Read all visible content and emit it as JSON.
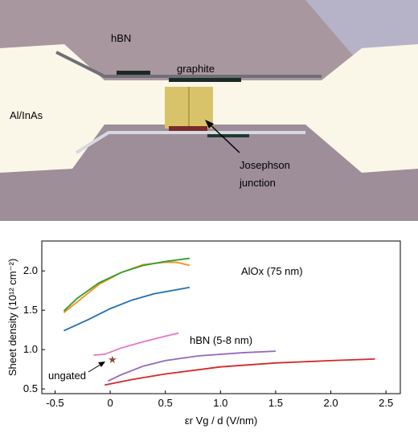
{
  "image": {
    "labels": [
      "hBN",
      "graphite",
      "Al/InAs",
      "Josephson",
      "junction"
    ]
  },
  "chart_data": {
    "type": "line",
    "ylabel": "Sheet density (10¹² cm⁻²)",
    "xlabel": "εr Vg / d (V/nm)",
    "annotations": [
      "AlOx (75 nm)",
      "hBN (5-8 nm)",
      "ungated"
    ],
    "xlim": [
      -0.62,
      2.63
    ],
    "ylim": [
      0.44,
      2.38
    ],
    "xticks": [
      -0.5,
      0,
      0.5,
      {
        "value": 1,
        "label": "1.0"
      },
      1.5,
      {
        "value": 2,
        "label": "2.0"
      },
      2.5
    ],
    "yticks": [
      0.5,
      {
        "value": 1,
        "label": "1.0"
      },
      1.5,
      {
        "value": 2,
        "label": "2.0"
      }
    ],
    "series": [
      {
        "color": "#ff8c1a",
        "x": [
          -0.42,
          -0.1,
          0.1,
          0.3,
          0.5,
          0.6,
          0.72
        ],
        "values": [
          1.47,
          1.83,
          1.98,
          2.08,
          2.11,
          2.11,
          2.07
        ]
      },
      {
        "color": "#2ca02c",
        "x": [
          -0.42,
          -0.3,
          -0.1,
          0.1,
          0.3,
          0.5,
          0.72
        ],
        "values": [
          1.49,
          1.65,
          1.85,
          1.98,
          2.07,
          2.12,
          2.16
        ]
      },
      {
        "color": "#1f6fb4",
        "x": [
          -0.42,
          -0.2,
          0,
          0.2,
          0.4,
          0.72
        ],
        "values": [
          1.24,
          1.38,
          1.52,
          1.63,
          1.71,
          1.79
        ]
      },
      {
        "color": "#e377c2",
        "x": [
          -0.15,
          -0.05,
          0.1,
          0.3,
          0.5,
          0.62
        ],
        "values": [
          0.93,
          0.94,
          1.02,
          1.1,
          1.17,
          1.21
        ]
      },
      {
        "color": "#9467bd",
        "x": [
          -0.02,
          0.1,
          0.3,
          0.5,
          0.8,
          1.2,
          1.5
        ],
        "values": [
          0.6,
          0.68,
          0.79,
          0.86,
          0.92,
          0.96,
          0.98
        ]
      },
      {
        "color": "#d62728",
        "x": [
          -0.05,
          0.2,
          0.5,
          1.0,
          1.5,
          2.0,
          2.4
        ],
        "values": [
          0.55,
          0.62,
          0.69,
          0.78,
          0.83,
          0.86,
          0.88
        ]
      }
    ],
    "point": {
      "x": 0.02,
      "value": 0.88,
      "color": "#8c4a2f"
    }
  }
}
